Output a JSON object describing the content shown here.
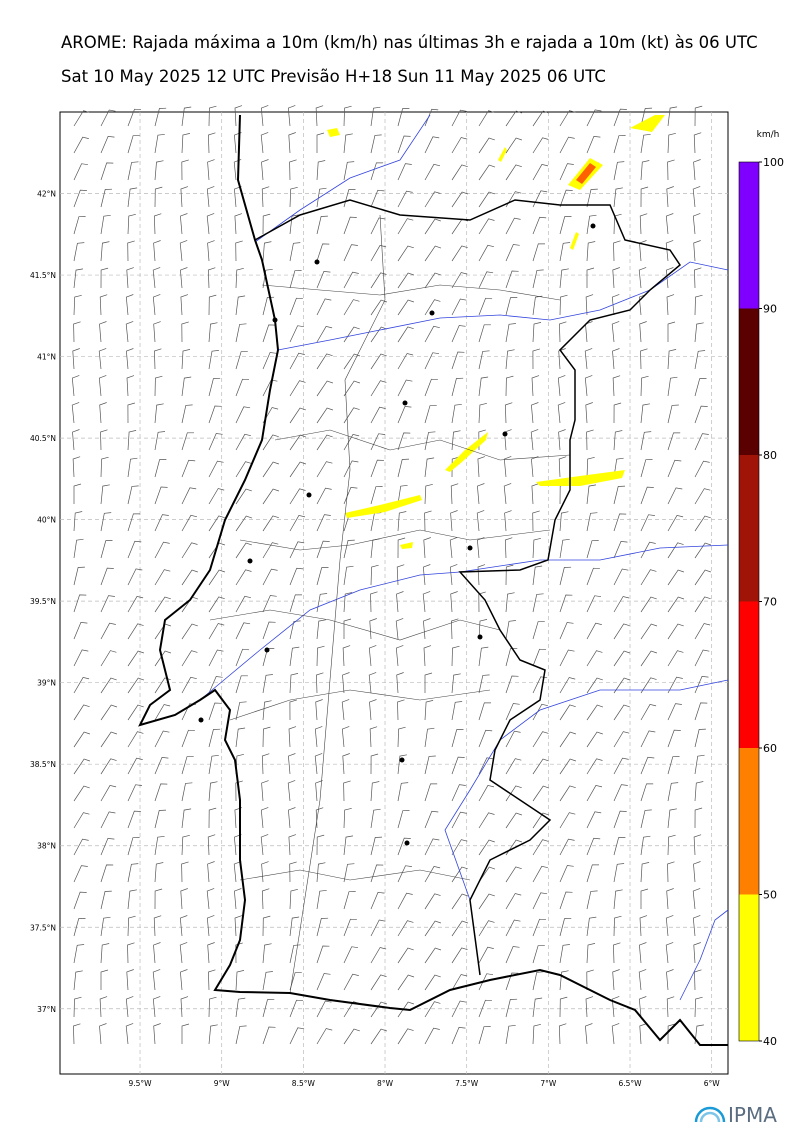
{
  "header": {
    "title": "AROME: Rajada máxima a 10m (km/h) nas últimas 3h e rajada a 10m (kt) às 06 UTC",
    "subtitle": "Sat 10 May 2025 12 UTC Previsão H+18 Sun 11 May 2025 06 UTC"
  },
  "map": {
    "xlim": [
      -9.99,
      -5.9
    ],
    "ylim": [
      36.6,
      42.5
    ],
    "xticks": [
      {
        "value": -9.5,
        "label": "9.5°W"
      },
      {
        "value": -9,
        "label": "9°W"
      },
      {
        "value": -8.5,
        "label": "8.5°W"
      },
      {
        "value": -8,
        "label": "8°W"
      },
      {
        "value": -7.5,
        "label": "7.5°W"
      },
      {
        "value": -7,
        "label": "7°W"
      },
      {
        "value": -6.5,
        "label": "6.5°W"
      },
      {
        "value": -6,
        "label": "6°W"
      }
    ],
    "yticks": [
      {
        "value": 42,
        "label": "42°N"
      },
      {
        "value": 41.5,
        "label": "41.5°N"
      },
      {
        "value": 41,
        "label": "41°N"
      },
      {
        "value": 40.5,
        "label": "40.5°N"
      },
      {
        "value": 40,
        "label": "40°N"
      },
      {
        "value": 39.5,
        "label": "39.5°N"
      },
      {
        "value": 39,
        "label": "39°N"
      },
      {
        "value": 38.5,
        "label": "38.5°N"
      },
      {
        "value": 38,
        "label": "38°N"
      },
      {
        "value": 37.5,
        "label": "37.5°N"
      },
      {
        "value": 37,
        "label": "37°N"
      }
    ]
  },
  "colorbar": {
    "unit": "km/h",
    "ticks": [
      40,
      50,
      60,
      70,
      80,
      90,
      100
    ],
    "colors": [
      "#ffff00",
      "#ff8000",
      "#ff0000",
      "#a01408",
      "#5a0000",
      "#8000ff"
    ]
  },
  "logo": "IPMA"
}
